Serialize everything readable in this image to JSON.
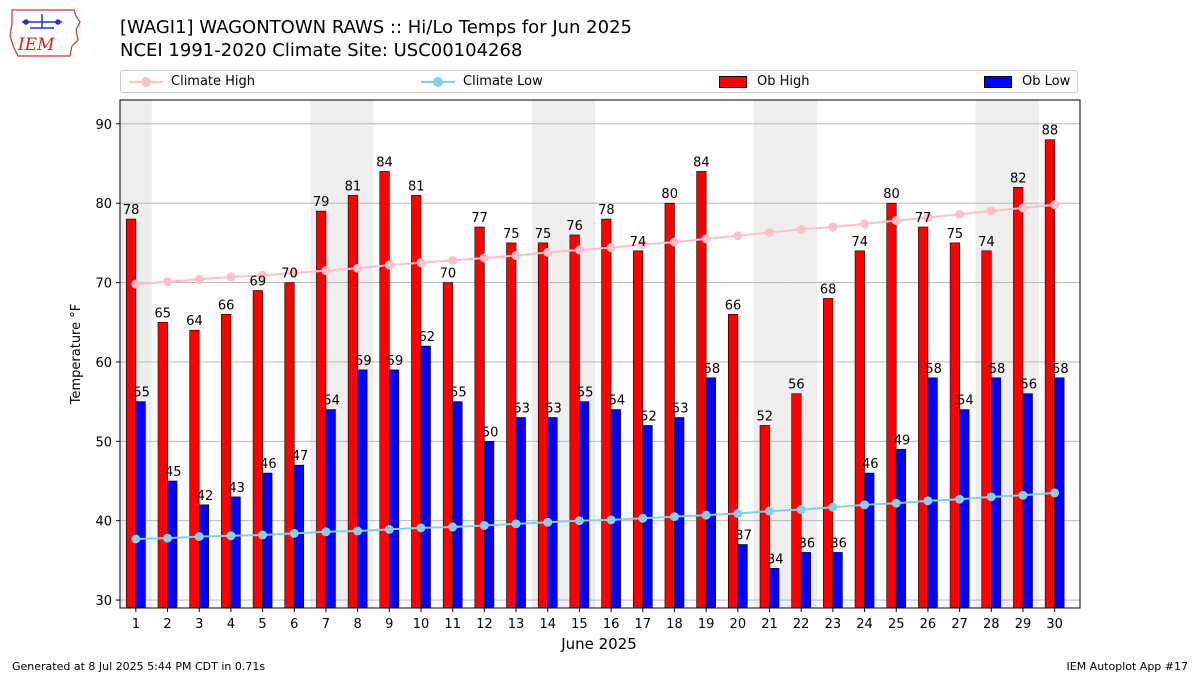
{
  "header": {
    "logo_text": "IEM",
    "title_line1": "[WAGI1] WAGONTOWN RAWS :: Hi/Lo Temps for Jun 2025",
    "title_line2": "NCEI 1991-2020 Climate Site: USC00104268"
  },
  "legend": {
    "climate_high": "Climate High",
    "climate_low": "Climate Low",
    "ob_high": "Ob High",
    "ob_low": "Ob Low"
  },
  "colors": {
    "climate_high": "#ffc0cb",
    "climate_low": "#87ceeb",
    "ob_high": "#ff0000",
    "ob_low": "#0000ff",
    "weekend_band": "#eeeeee",
    "grid": "#b0b0b0"
  },
  "footer": {
    "generated": "Generated at 8 Jul 2025 5:44 PM CDT in 0.71s",
    "app": "IEM Autoplot App #17"
  },
  "chart_data": {
    "type": "bar",
    "xlabel": "June 2025",
    "ylabel": "Temperature °F",
    "ylim": [
      29,
      93
    ],
    "yticks": [
      30,
      40,
      50,
      60,
      70,
      80,
      90
    ],
    "grid": "horizontal",
    "legend_position": "top",
    "categories": [
      "1",
      "2",
      "3",
      "4",
      "5",
      "6",
      "7",
      "8",
      "9",
      "10",
      "11",
      "12",
      "13",
      "14",
      "15",
      "16",
      "17",
      "18",
      "19",
      "20",
      "21",
      "22",
      "23",
      "24",
      "25",
      "26",
      "27",
      "28",
      "29",
      "30"
    ],
    "shaded_days": [
      1,
      7,
      8,
      14,
      15,
      21,
      22,
      28,
      29
    ],
    "series": [
      {
        "name": "Ob High",
        "kind": "bar",
        "values": [
          78,
          65,
          64,
          66,
          69,
          70,
          79,
          81,
          84,
          81,
          70,
          77,
          75,
          75,
          76,
          78,
          74,
          80,
          84,
          66,
          52,
          56,
          68,
          74,
          80,
          77,
          75,
          74,
          82,
          88
        ]
      },
      {
        "name": "Ob Low",
        "kind": "bar",
        "values": [
          55,
          45,
          42,
          43,
          46,
          47,
          54,
          59,
          59,
          62,
          55,
          50,
          53,
          53,
          55,
          54,
          52,
          53,
          58,
          37,
          34,
          36,
          36,
          46,
          49,
          58,
          54,
          58,
          56,
          58
        ]
      },
      {
        "name": "Climate High",
        "kind": "line",
        "values": [
          69.8,
          70.1,
          70.4,
          70.7,
          70.9,
          71.2,
          71.5,
          71.8,
          72.2,
          72.5,
          72.8,
          73.1,
          73.4,
          73.8,
          74.1,
          74.4,
          74.8,
          75.1,
          75.5,
          75.9,
          76.3,
          76.7,
          77.0,
          77.4,
          77.8,
          78.2,
          78.6,
          79.0,
          79.4,
          79.8
        ]
      },
      {
        "name": "Climate Low",
        "kind": "line",
        "values": [
          37.7,
          37.8,
          38.0,
          38.1,
          38.2,
          38.4,
          38.6,
          38.7,
          38.9,
          39.1,
          39.2,
          39.4,
          39.6,
          39.8,
          40.0,
          40.1,
          40.3,
          40.5,
          40.7,
          40.9,
          41.2,
          41.4,
          41.7,
          42.0,
          42.2,
          42.5,
          42.7,
          43.0,
          43.2,
          43.5
        ]
      }
    ]
  }
}
